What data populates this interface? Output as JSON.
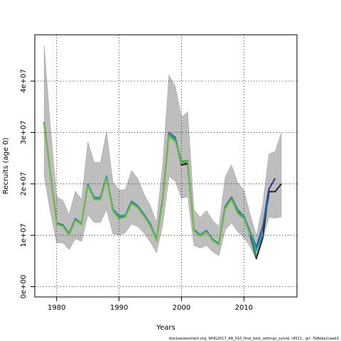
{
  "chart_data": {
    "type": "line",
    "title": "",
    "xlabel": "Years",
    "ylabel": "Recruits (age 0)",
    "footer": "stockassessment.org, WHG2017_AN_010_final_best_settings_survid, r9511 , git: 7b8eba1caeb3",
    "xlim": [
      1976.5,
      2018.5
    ],
    "ylim": [
      -2000000,
      49000000
    ],
    "grid": true,
    "grid_style": "dotted",
    "x_ticks": [
      1980,
      1990,
      2000,
      2010
    ],
    "x_tick_labels": [
      "1980",
      "1990",
      "2000",
      "2010"
    ],
    "y_ticks": [
      0,
      10000000,
      20000000,
      30000000,
      40000000
    ],
    "y_tick_labels": [
      "0e+00",
      "1e+07",
      "2e+07",
      "3e+07",
      "4e+07"
    ],
    "band_color": "#bebebe",
    "band": {
      "x": [
        1978,
        1979,
        1980,
        1981,
        1982,
        1983,
        1984,
        1985,
        1986,
        1987,
        1988,
        1989,
        1990,
        1991,
        1992,
        1993,
        1994,
        1995,
        1996,
        1997,
        1998,
        1999,
        2000,
        2001,
        2002,
        2003,
        2004,
        2005,
        2006,
        2007,
        2008,
        2009,
        2010,
        2011,
        2012,
        2013,
        2014,
        2015,
        2016
      ],
      "lower": [
        21500000,
        14500000,
        8500000,
        8500000,
        7200000,
        9300000,
        8800000,
        14000000,
        12500000,
        12500000,
        15000000,
        10300000,
        10000000,
        10500000,
        12200000,
        11700000,
        10400000,
        8700000,
        6600000,
        12000000,
        21500000,
        20500000,
        17200000,
        17500000,
        8000000,
        7500000,
        8000000,
        6800000,
        6000000,
        11000000,
        12400000,
        10700000,
        9500000,
        7800000,
        5200000,
        9000000,
        13500000,
        13300000,
        13600000
      ],
      "upper": [
        47000000,
        31000000,
        17500000,
        16800000,
        14000000,
        18600000,
        17000000,
        28200000,
        24200000,
        24100000,
        30200000,
        20500000,
        18800000,
        18900000,
        22600000,
        21000000,
        18000000,
        15800000,
        12500000,
        24000000,
        41200000,
        39000000,
        33000000,
        34000000,
        15000000,
        13500000,
        14800000,
        12900000,
        11700000,
        21400000,
        23700000,
        20300000,
        18800000,
        14100000,
        9900000,
        15800000,
        25800000,
        26300000,
        30000000
      ]
    },
    "series": [
      {
        "color": "#222222",
        "x": [
          1978,
          1979,
          1980,
          1981,
          1982,
          1983,
          1984,
          1985,
          1986,
          1987,
          1988,
          1989,
          1990,
          1991,
          1992,
          1993,
          1994,
          1995,
          1996,
          1997,
          1998,
          1999,
          2000,
          2001,
          2002,
          2003,
          2004,
          2005,
          2006,
          2007,
          2008,
          2009,
          2010,
          2011,
          2012,
          2013,
          2014,
          2015,
          2016
        ],
        "values": [
          32000000,
          22000000,
          12300000,
          11900000,
          10200000,
          13100000,
          12200000,
          19800000,
          17200000,
          17100000,
          21200000,
          15000000,
          13600000,
          13800000,
          16500000,
          15600000,
          13900000,
          12100000,
          9100000,
          17000000,
          29700000,
          28500000,
          23700000,
          23900000,
          11000000,
          10000000,
          10800000,
          9100000,
          8300000,
          15500000,
          17200000,
          14800000,
          13600000,
          10000000,
          5500000,
          9500000,
          18500000,
          18500000,
          20000000
        ]
      },
      {
        "color": "#3b2e8a",
        "x": [
          1978,
          1979,
          1980,
          1981,
          1982,
          1983,
          1984,
          1985,
          1986,
          1987,
          1988,
          1989,
          1990,
          1991,
          1992,
          1993,
          1994,
          1995,
          1996,
          1997,
          1998,
          1999,
          2000,
          2001,
          2002,
          2003,
          2004,
          2005,
          2006,
          2007,
          2008,
          2009,
          2010,
          2011,
          2012,
          2013,
          2014,
          2015
        ],
        "values": [
          31800000,
          21900000,
          12400000,
          12000000,
          10300000,
          13200000,
          12300000,
          19900000,
          17300000,
          17300000,
          21400000,
          15100000,
          13700000,
          13900000,
          16600000,
          15700000,
          14000000,
          12200000,
          9200000,
          17100000,
          30000000,
          29000000,
          24000000,
          24100000,
          11100000,
          10100000,
          10900000,
          9200000,
          8400000,
          15600000,
          17400000,
          15000000,
          13700000,
          10500000,
          7400000,
          11500000,
          19000000,
          21100000
        ]
      },
      {
        "color": "#1e73b4",
        "x": [
          1978,
          1979,
          1980,
          1981,
          1982,
          1983,
          1984,
          1985,
          1986,
          1987,
          1988,
          1989,
          1990,
          1991,
          1992,
          1993,
          1994,
          1995,
          1996,
          1997,
          1998,
          1999,
          2000,
          2001,
          2002,
          2003,
          2004,
          2005,
          2006,
          2007,
          2008,
          2009,
          2010,
          2011,
          2012,
          2013,
          2014
        ],
        "values": [
          31700000,
          21800000,
          12300000,
          12000000,
          10300000,
          13100000,
          12300000,
          19900000,
          17400000,
          17300000,
          21500000,
          15100000,
          13800000,
          13900000,
          16600000,
          15700000,
          14000000,
          12200000,
          9200000,
          17000000,
          29900000,
          28800000,
          24300000,
          24300000,
          11100000,
          10100000,
          10900000,
          9200000,
          8400000,
          15600000,
          17300000,
          14800000,
          13700000,
          10700000,
          7800000,
          11800000,
          17500000
        ]
      },
      {
        "color": "#2ca6a4",
        "x": [
          1978,
          1979,
          1980,
          1981,
          1982,
          1983,
          1984,
          1985,
          1986,
          1987,
          1988,
          1989,
          1990,
          1991,
          1992,
          1993,
          1994,
          1995,
          1996,
          1997,
          1998,
          1999,
          2000,
          2001,
          2002,
          2003,
          2004,
          2005,
          2006,
          2007,
          2008,
          2009,
          2010,
          2011,
          2012,
          2013
        ],
        "values": [
          31600000,
          21700000,
          12300000,
          11900000,
          10200000,
          13100000,
          12300000,
          19800000,
          17300000,
          17200000,
          21400000,
          15000000,
          13700000,
          13900000,
          16500000,
          15600000,
          13900000,
          12100000,
          9100000,
          16900000,
          29800000,
          28800000,
          24400000,
          24500000,
          11000000,
          10100000,
          10800000,
          9200000,
          8400000,
          15500000,
          17300000,
          14900000,
          13600000,
          10500000,
          7000000,
          10200000
        ]
      },
      {
        "color": "#2e8b57",
        "x": [
          1978,
          1979,
          1980,
          1981,
          1982,
          1983,
          1984,
          1985,
          1986,
          1987,
          1988,
          1989,
          1990,
          1991,
          1992,
          1993,
          1994,
          1995,
          1996,
          1997,
          1998,
          1999,
          2000,
          2001,
          2002,
          2003,
          2004,
          2005,
          2006,
          2007,
          2008,
          2009,
          2010,
          2011,
          2012
        ],
        "values": [
          31800000,
          21900000,
          12200000,
          11800000,
          10100000,
          13000000,
          12100000,
          19700000,
          17000000,
          17000000,
          21100000,
          14800000,
          13400000,
          13600000,
          16300000,
          15400000,
          13700000,
          11900000,
          9000000,
          16800000,
          29500000,
          28400000,
          24200000,
          24500000,
          10900000,
          9900000,
          10700000,
          9000000,
          8200000,
          15300000,
          17100000,
          14400000,
          13300000,
          10200000,
          5800000
        ]
      },
      {
        "color": "#7cc242",
        "x": [
          1978,
          1979,
          1980,
          1981,
          1982,
          1983,
          1984,
          1985,
          1986,
          1987,
          1988,
          1989,
          1990,
          1991,
          1992,
          1993,
          1994,
          1995,
          1996,
          1997,
          1998,
          1999,
          2000,
          2001,
          2002,
          2003,
          2004,
          2005,
          2006,
          2007,
          2008,
          2009,
          2010,
          2011
        ],
        "values": [
          31900000,
          21800000,
          12100000,
          11700000,
          10000000,
          12900000,
          12000000,
          19600000,
          16900000,
          16900000,
          21000000,
          14700000,
          13200000,
          13500000,
          16100000,
          15300000,
          13600000,
          11800000,
          8900000,
          16700000,
          29300000,
          28200000,
          24000000,
          24400000,
          10800000,
          9800000,
          10600000,
          8900000,
          8100000,
          15100000,
          16900000,
          14200000,
          13200000,
          10000000
        ]
      }
    ]
  }
}
